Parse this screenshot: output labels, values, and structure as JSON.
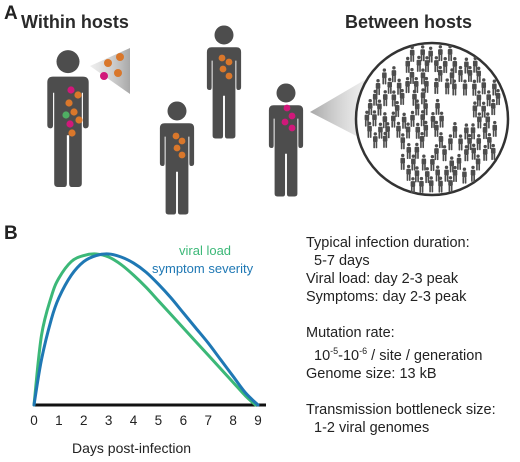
{
  "panel_a": {
    "letter": "A",
    "within_label": "Within hosts",
    "between_label": "Between hosts"
  },
  "panel_b": {
    "letter": "B",
    "info": {
      "duration_title": "Typical infection duration:",
      "duration_value": "5-7 days",
      "viral_load": "Viral load: day 2-3 peak",
      "symptoms": "Symptoms: day 2-3 peak",
      "mutation_title": "Mutation rate:",
      "mutation_base1": "10",
      "mutation_exp1": "-5",
      "mutation_dash": "-10",
      "mutation_exp2": "-6",
      "mutation_suffix": " / site / generation",
      "genome_size": "Genome size: 13 kB",
      "bottleneck_title": "Transmission bottleneck size:",
      "bottleneck_value": "1-2 viral genomes"
    }
  },
  "colors": {
    "person": "#4d4d4d",
    "viral_load": "#3cb878",
    "symptom_severity": "#1f78b4",
    "virus_orange": "#d9772b",
    "virus_magenta": "#d1187a",
    "virus_green": "#4fae63"
  },
  "chart_data": {
    "type": "line",
    "xlabel": "Days post-infection",
    "ylabel": "",
    "xlim": [
      0,
      9
    ],
    "ylim": [
      0,
      1
    ],
    "x_ticks": [
      "0",
      "1",
      "2",
      "3",
      "4",
      "5",
      "6",
      "7",
      "8",
      "9"
    ],
    "series": [
      {
        "name": "viral load",
        "color": "#3cb878",
        "x": [
          0,
          0.3,
          0.7,
          1,
          1.5,
          2,
          2.5,
          3,
          3.5,
          4,
          4.5,
          5,
          5.5,
          6,
          6.5,
          7,
          7.5,
          8,
          8.5,
          8.9
        ],
        "y": [
          0,
          0.46,
          0.72,
          0.84,
          0.95,
          0.99,
          1.0,
          0.98,
          0.93,
          0.86,
          0.78,
          0.69,
          0.6,
          0.51,
          0.42,
          0.33,
          0.24,
          0.15,
          0.06,
          0
        ]
      },
      {
        "name": "symptom severity",
        "color": "#1f78b4",
        "x": [
          0,
          0.3,
          0.7,
          1,
          1.5,
          2,
          2.5,
          3,
          3.5,
          4,
          4.5,
          5,
          5.5,
          6,
          6.5,
          7,
          7.5,
          8,
          8.5,
          9
        ],
        "y": [
          0,
          0.3,
          0.57,
          0.71,
          0.86,
          0.95,
          0.99,
          1.0,
          0.98,
          0.94,
          0.88,
          0.8,
          0.71,
          0.61,
          0.51,
          0.41,
          0.3,
          0.19,
          0.08,
          0
        ]
      }
    ]
  }
}
